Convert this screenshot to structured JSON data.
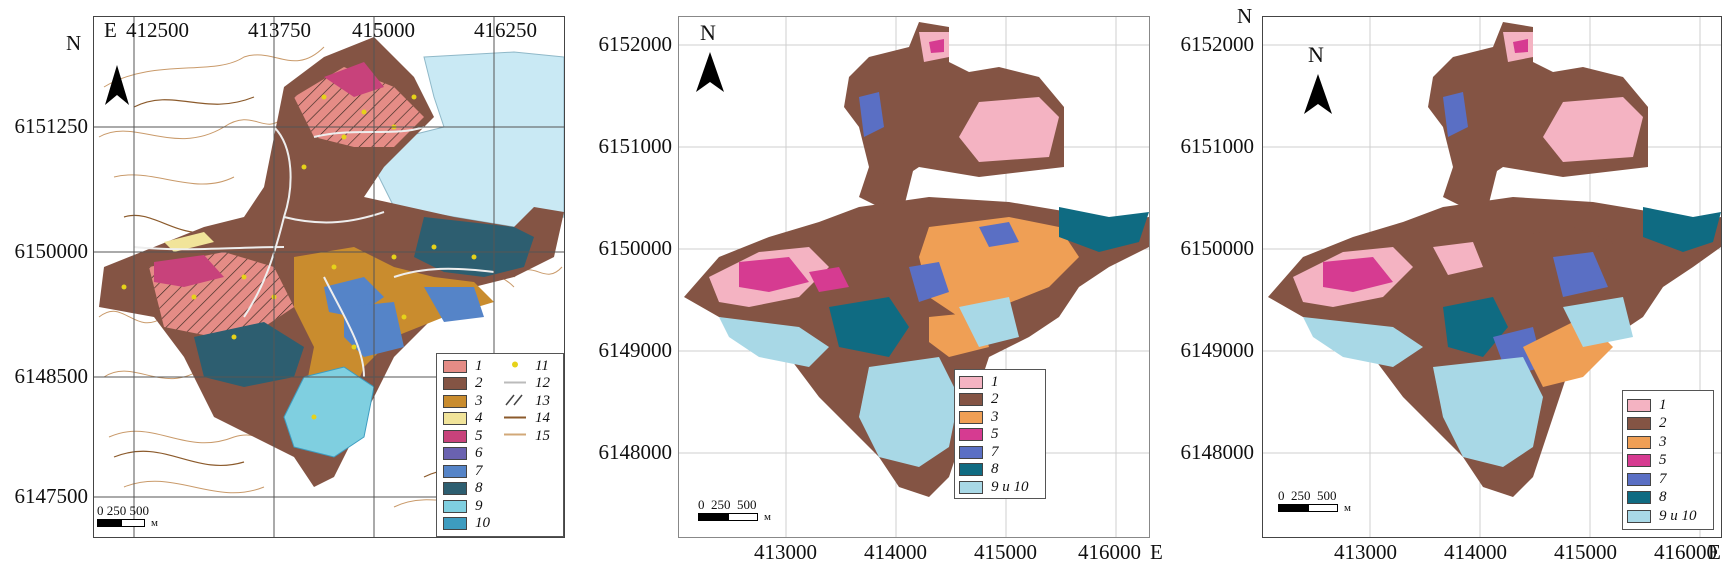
{
  "panels": [
    {
      "id": "a",
      "x_ticks": [
        "412500",
        "413750",
        "415000",
        "416250"
      ],
      "y_ticks": [
        "6151250",
        "6150000",
        "6148500",
        "6147500"
      ],
      "axis_x_letter": "E",
      "axis_y_letter": "N",
      "north_label": "",
      "scale_labels": [
        "0",
        "250",
        "500"
      ],
      "scale_unit": "м",
      "legend_left": [
        {
          "label": "1",
          "color": "#e58c86"
        },
        {
          "label": "2",
          "color": "#845444"
        },
        {
          "label": "3",
          "color": "#c98c2e"
        },
        {
          "label": "4",
          "color": "#f1e49a"
        },
        {
          "label": "5",
          "color": "#c8427b"
        },
        {
          "label": "6",
          "color": "#6a62b0"
        },
        {
          "label": "7",
          "color": "#5584c8"
        },
        {
          "label": "8",
          "color": "#2d5e70"
        },
        {
          "label": "9",
          "color": "#7fcfe0"
        },
        {
          "label": "10",
          "color": "#3d9cc0"
        }
      ],
      "legend_right": [
        {
          "label": "11",
          "symbol": "dot",
          "color": "#e6d21a"
        },
        {
          "label": "12",
          "symbol": "line",
          "color": "#bbbbbb"
        },
        {
          "label": "13",
          "symbol": "hatch",
          "color": "#444444"
        },
        {
          "label": "14",
          "symbol": "line",
          "color": "#8b5a2b"
        },
        {
          "label": "15",
          "symbol": "line",
          "color": "#d2a878"
        }
      ]
    },
    {
      "id": "b",
      "x_ticks": [
        "413000",
        "414000",
        "415000",
        "416000"
      ],
      "y_ticks": [
        "6152000",
        "6151000",
        "6150000",
        "6149000",
        "6148000"
      ],
      "axis_x_letter": "E",
      "axis_y_letter": "",
      "north_label": "N",
      "scale_labels": [
        "0",
        "250",
        "500"
      ],
      "scale_unit": "м",
      "legend": [
        {
          "label": "1",
          "color": "#f4b3c2"
        },
        {
          "label": "2",
          "color": "#845444"
        },
        {
          "label": "3",
          "color": "#ef9f55"
        },
        {
          "label": "5",
          "color": "#d63b91"
        },
        {
          "label": "7",
          "color": "#5a6fc4"
        },
        {
          "label": "8",
          "color": "#0f6b82"
        },
        {
          "label": "9 и 10",
          "color": "#a8d8e6"
        }
      ]
    },
    {
      "id": "c",
      "x_ticks": [
        "413000",
        "414000",
        "415000",
        "416000"
      ],
      "y_ticks": [
        "6152000",
        "6151000",
        "6150000",
        "6149000",
        "6148000"
      ],
      "axis_x_letter": "E",
      "axis_y_letter": "N",
      "north_label": "N",
      "scale_labels": [
        "0",
        "250",
        "500"
      ],
      "scale_unit": "м",
      "legend": [
        {
          "label": "1",
          "color": "#f4b3c2"
        },
        {
          "label": "2",
          "color": "#845444"
        },
        {
          "label": "3",
          "color": "#ef9f55"
        },
        {
          "label": "5",
          "color": "#d63b91"
        },
        {
          "label": "7",
          "color": "#5a6fc4"
        },
        {
          "label": "8",
          "color": "#0f6b82"
        },
        {
          "label": "9 и 10",
          "color": "#a8d8e6"
        }
      ]
    }
  ]
}
